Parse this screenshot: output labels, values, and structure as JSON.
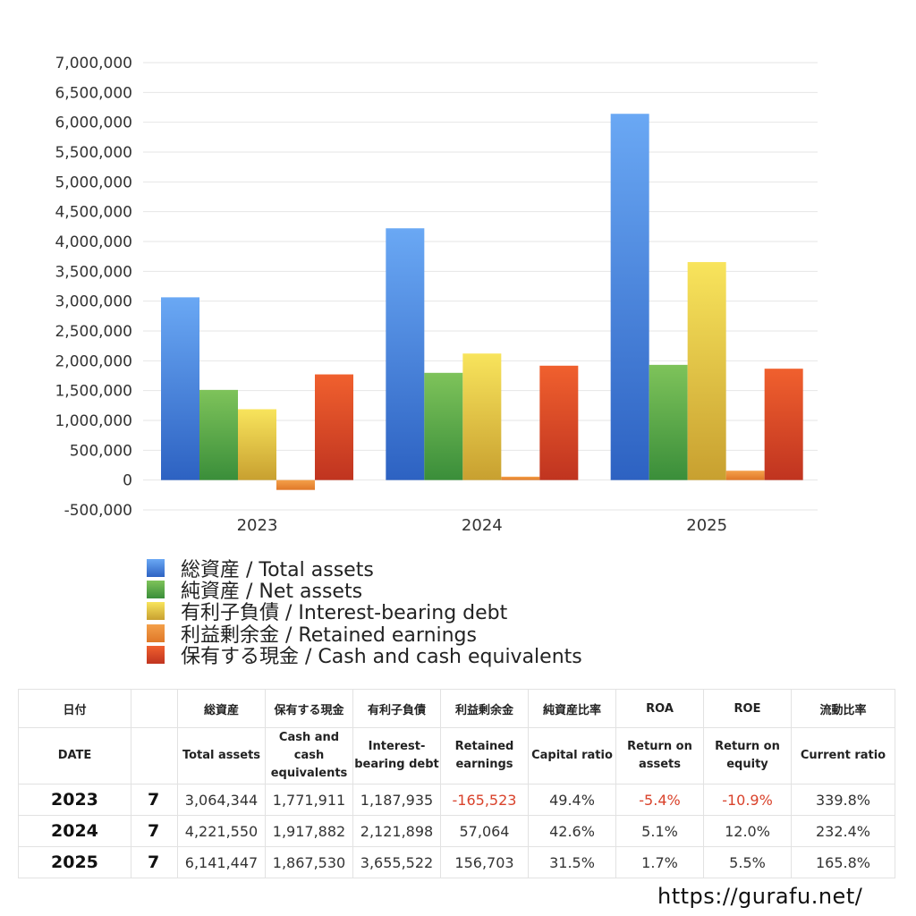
{
  "chart_data": {
    "type": "bar",
    "categories": [
      "2023",
      "2024",
      "2025"
    ],
    "ylim": [
      -500000,
      7000000
    ],
    "yticks": [
      7000000,
      6500000,
      6000000,
      5500000,
      5000000,
      4500000,
      4000000,
      3500000,
      3000000,
      2500000,
      2000000,
      1500000,
      1000000,
      500000,
      0,
      -500000
    ],
    "ytick_labels": [
      "7,000,000",
      "6,500,000",
      "6,000,000",
      "5,500,000",
      "5,000,000",
      "4,500,000",
      "4,000,000",
      "3,500,000",
      "3,000,000",
      "2,500,000",
      "2,000,000",
      "1,500,000",
      "1,000,000",
      "500,000",
      "0",
      "-500,000"
    ],
    "grid": true,
    "legend_position": "bottom-left",
    "series": [
      {
        "name": "総資産 / Total assets",
        "values": [
          3064344,
          4221550,
          6141447
        ],
        "color_top": "#6aa8f4",
        "color_bottom": "#2d62c2"
      },
      {
        "name": "純資産 / Net assets",
        "values": [
          1512000,
          1798000,
          1932000
        ],
        "color_top": "#7ec35a",
        "color_bottom": "#3a8e3a"
      },
      {
        "name": "有利子負債 / Interest-bearing debt",
        "values": [
          1187935,
          2121898,
          3655522
        ],
        "color_top": "#f8e45c",
        "color_bottom": "#c8a030"
      },
      {
        "name": "利益剰余金 / Retained earnings",
        "values": [
          -165523,
          57064,
          156703
        ],
        "color_top": "#f4a04a",
        "color_bottom": "#e07828"
      },
      {
        "name": "保有する現金 /  Cash and cash equivalents",
        "values": [
          1771911,
          1917882,
          1867530
        ],
        "color_top": "#f0602e",
        "color_bottom": "#c03420"
      }
    ]
  },
  "table": {
    "headers_jp": [
      "日付",
      "",
      "総資産",
      "保有する現金",
      "有利子負債",
      "利益剰余金",
      "純資産比率",
      "ROA",
      "ROE",
      "流動比率"
    ],
    "headers_en": [
      "DATE",
      "",
      "Total assets",
      "Cash and cash equivalents",
      "Interest-bearing debt",
      "Retained earnings",
      "Capital ratio",
      "Return on assets",
      "Return on equity",
      "Current ratio"
    ],
    "rows": [
      {
        "year": "2023",
        "month": "7",
        "total_assets": "3,064,344",
        "cash": "1,771,911",
        "debt": "1,187,935",
        "retained": "-165,523",
        "capital_ratio": "49.4%",
        "roa": "-5.4%",
        "roe": "-10.9%",
        "current_ratio": "339.8%"
      },
      {
        "year": "2024",
        "month": "7",
        "total_assets": "4,221,550",
        "cash": "1,917,882",
        "debt": "2,121,898",
        "retained": "57,064",
        "capital_ratio": "42.6%",
        "roa": "5.1%",
        "roe": "12.0%",
        "current_ratio": "232.4%"
      },
      {
        "year": "2025",
        "month": "7",
        "total_assets": "6,141,447",
        "cash": "1,867,530",
        "debt": "3,655,522",
        "retained": "156,703",
        "capital_ratio": "31.5%",
        "roa": "1.7%",
        "roe": "5.5%",
        "current_ratio": "165.8%"
      }
    ]
  },
  "footer": {
    "url": "https://gurafu.net/"
  },
  "colors": {
    "negative": "#d9422b",
    "grid": "#e6e6e6"
  }
}
